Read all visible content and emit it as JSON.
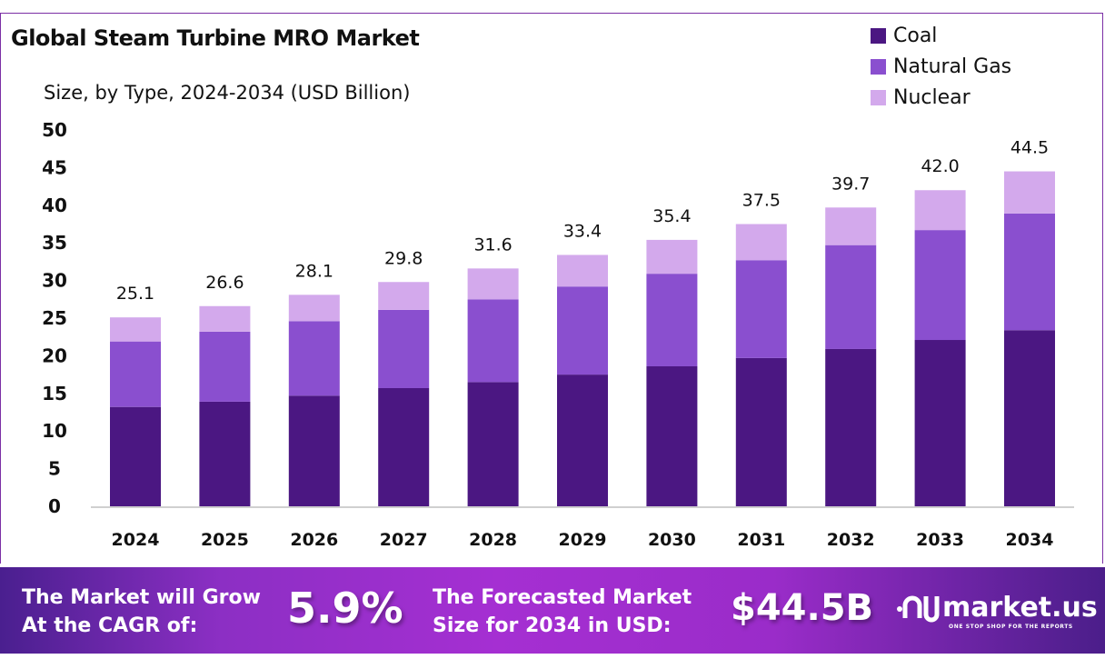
{
  "chart_data": {
    "type": "bar",
    "stacked": true,
    "title": "Global Steam Turbine MRO Market",
    "subtitle": "Size, by Type, 2024-2034 (USD Billion)",
    "categories": [
      "2024",
      "2025",
      "2026",
      "2027",
      "2028",
      "2029",
      "2030",
      "2031",
      "2032",
      "2033",
      "2034"
    ],
    "series": [
      {
        "name": "Coal",
        "color": "#4b1782",
        "values": [
          13.2,
          13.9,
          14.7,
          15.7,
          16.5,
          17.5,
          18.6,
          19.7,
          20.9,
          22.1,
          23.4
        ]
      },
      {
        "name": "Natural Gas",
        "color": "#8a4fcf",
        "values": [
          8.7,
          9.3,
          9.9,
          10.4,
          11.0,
          11.7,
          12.3,
          13.0,
          13.8,
          14.6,
          15.5
        ]
      },
      {
        "name": "Nuclear",
        "color": "#d3a9ec",
        "values": [
          3.2,
          3.4,
          3.5,
          3.7,
          4.1,
          4.2,
          4.5,
          4.8,
          5.0,
          5.3,
          5.6
        ]
      }
    ],
    "totals": [
      "25.1",
      "26.6",
      "28.1",
      "29.8",
      "31.6",
      "33.4",
      "35.4",
      "37.5",
      "39.7",
      "42.0",
      "44.5"
    ],
    "yticks": [
      "0",
      "5",
      "10",
      "15",
      "20",
      "25",
      "30",
      "35",
      "40",
      "45",
      "50"
    ],
    "ylim": [
      0,
      50
    ],
    "grid": false,
    "legend": "top-right"
  },
  "banner": {
    "cagr_label_1": "The Market will Grow",
    "cagr_label_2": "At the CAGR of:",
    "cagr_value": "5.9%",
    "forecast_label_1": "The Forecasted Market",
    "forecast_label_2": "Size for 2034 in USD:",
    "forecast_value": "$44.5B",
    "brand": "market.us",
    "tagline": "ONE STOP SHOP FOR THE REPORTS"
  }
}
